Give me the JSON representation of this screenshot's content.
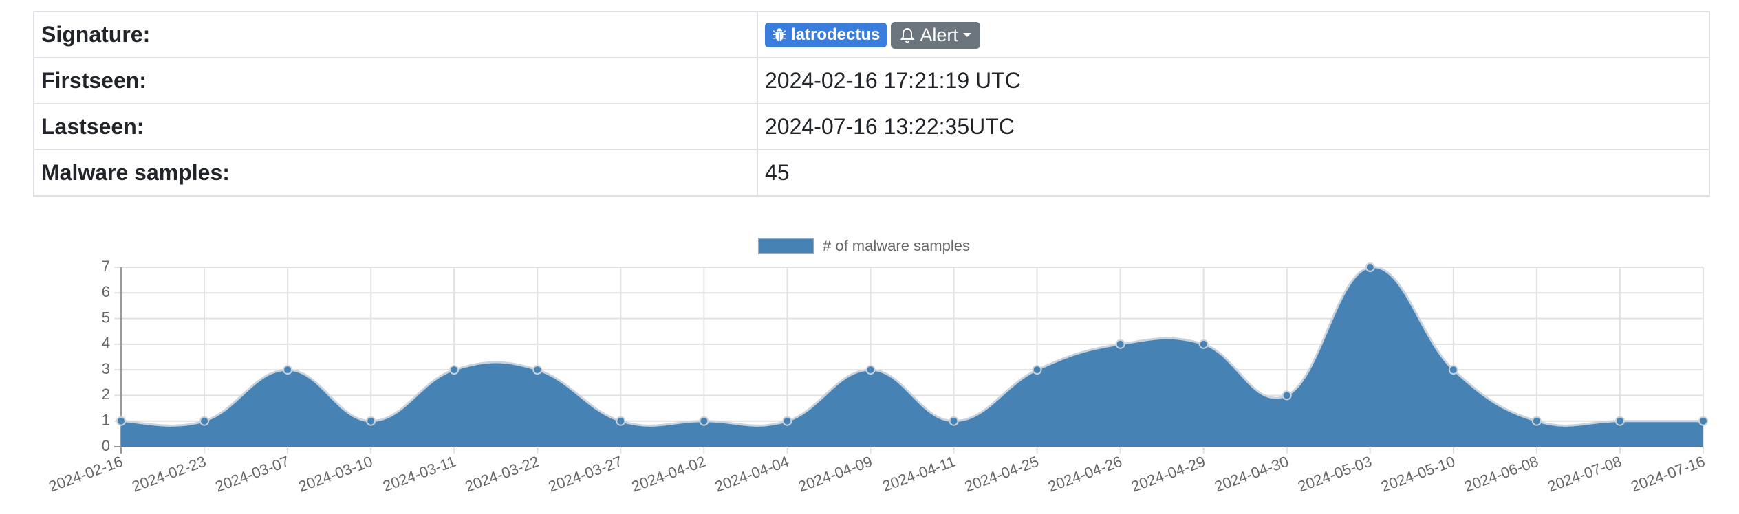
{
  "table": {
    "rows": [
      {
        "label": "Signature:",
        "tag": "latrodectus",
        "button": "Alert"
      },
      {
        "label": "Firstseen:",
        "value": "2024-02-16 17:21:19 UTC"
      },
      {
        "label": "Lastseen:",
        "value": "2024-07-16 13:22:35UTC"
      },
      {
        "label": "Malware samples:",
        "value": 45
      }
    ]
  },
  "chart_data": {
    "type": "area",
    "categories": [
      "2024-02-16",
      "2024-02-23",
      "2024-03-07",
      "2024-03-10",
      "2024-03-11",
      "2024-03-22",
      "2024-03-27",
      "2024-04-02",
      "2024-04-04",
      "2024-04-09",
      "2024-04-11",
      "2024-04-25",
      "2024-04-26",
      "2024-04-29",
      "2024-04-30",
      "2024-05-03",
      "2024-05-10",
      "2024-06-08",
      "2024-07-08",
      "2024-07-16"
    ],
    "series": [
      {
        "name": "# of malware samples",
        "color": "#4682b4",
        "values": [
          1,
          1,
          3,
          1,
          3,
          3,
          1,
          1,
          1,
          3,
          1,
          3,
          4,
          4,
          2,
          7,
          3,
          1,
          1,
          1
        ]
      }
    ],
    "ylim": [
      0,
      7
    ],
    "yticks": [
      0,
      1,
      2,
      3,
      4,
      5,
      6,
      7
    ],
    "grid": true,
    "legend": "top"
  }
}
